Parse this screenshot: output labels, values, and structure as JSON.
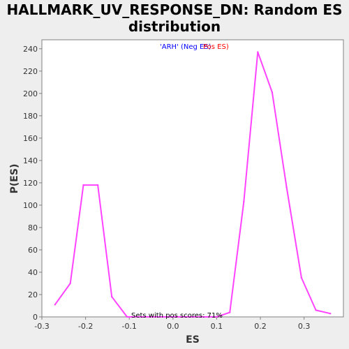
{
  "chart_data": {
    "type": "line",
    "title_line1": "HALLMARK_UV_RESPONSE_DN: Random ES",
    "title_line2": "distribution",
    "xlabel": "ES",
    "ylabel": "P(ES)",
    "xlim": [
      -0.3,
      0.39
    ],
    "ylim": [
      0,
      248
    ],
    "xticks": [
      "-0.3",
      "-0.2",
      "-0.1",
      "0.0",
      "0.1",
      "0.2",
      "0.3"
    ],
    "yticks": [
      "0",
      "20",
      "40",
      "60",
      "80",
      "100",
      "120",
      "140",
      "160",
      "180",
      "200",
      "220",
      "240"
    ],
    "legend_neg": "'ARH' (Neg ES)",
    "legend_pos": "Pos ES)",
    "annotation": "Sets with pos scores: 71%",
    "line_color": "#ff44ff",
    "neg_color": "#0000ff",
    "pos_color": "#ff0000",
    "series": [
      {
        "x": [
          -0.27,
          -0.235,
          -0.205,
          -0.172,
          -0.14,
          -0.105,
          0.1,
          0.13,
          0.162,
          0.194,
          0.227,
          0.26,
          0.294,
          0.327,
          0.36
        ],
        "y": [
          11,
          30,
          118,
          118,
          18,
          0,
          0,
          4,
          103,
          237,
          201,
          116,
          35,
          6,
          3
        ]
      }
    ]
  }
}
